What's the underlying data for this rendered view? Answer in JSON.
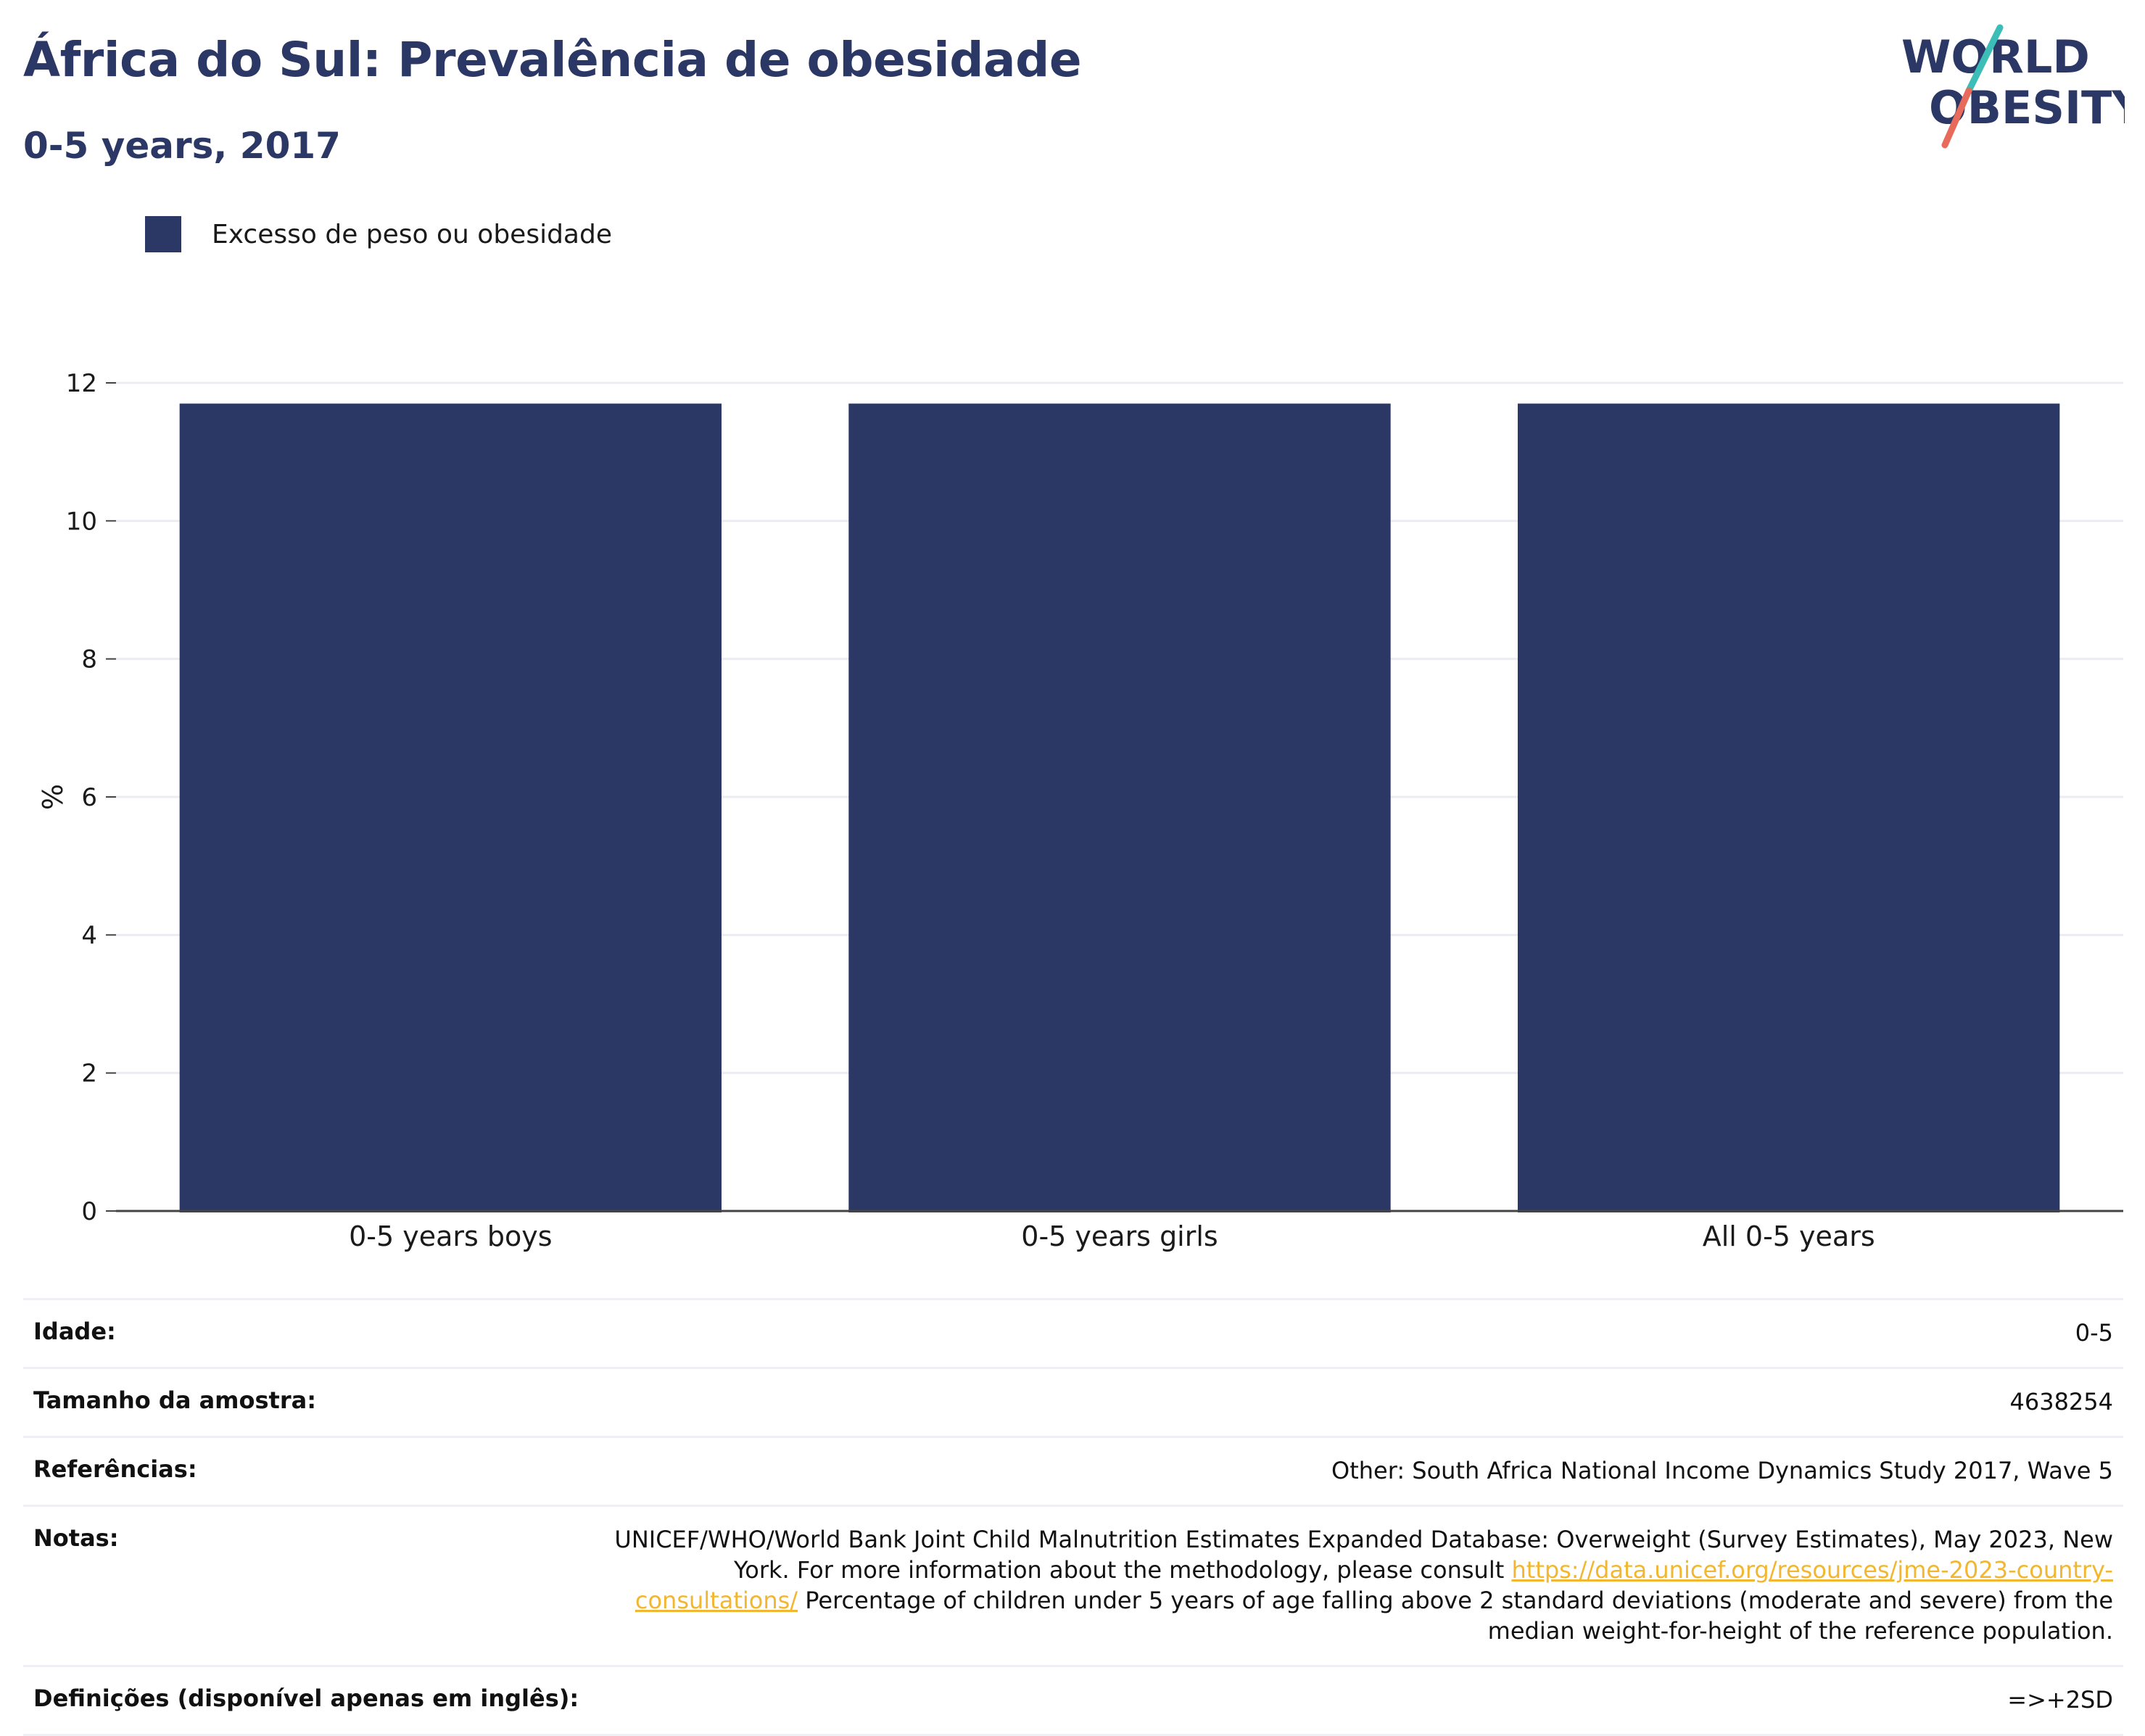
{
  "header": {
    "title": "África do Sul: Prevalência de obesidade",
    "subtitle": "0-5 years, 2017"
  },
  "logo": {
    "line1": "WORLD",
    "line2": "OBESITY"
  },
  "colors": {
    "bar": "#2b3765",
    "title": "#2b3765",
    "gridline": "#ececf2",
    "link": "#f2b630",
    "logo_teal": "#3dbdb8",
    "logo_coral": "#e86a5b"
  },
  "chart_data": {
    "type": "bar",
    "title": "África do Sul: Prevalência de obesidade",
    "subtitle": "0-5 years, 2017",
    "categories": [
      "0-5 years boys",
      "0-5 years girls",
      "All 0-5 years"
    ],
    "series": [
      {
        "name": "Excesso de peso ou obesidade",
        "values": [
          11.7,
          11.7,
          11.7
        ]
      }
    ],
    "xlabel": "",
    "ylabel": "%",
    "ylim": [
      0,
      12
    ],
    "yticks": [
      0,
      2,
      4,
      6,
      8,
      10,
      12
    ],
    "grid": true,
    "legend_position": "top-left"
  },
  "meta": {
    "age_label": "Idade:",
    "age_value": "0-5",
    "sample_label": "Tamanho da amostra:",
    "sample_value": "4638254",
    "refs_label": "Referências:",
    "refs_value": "Other: South Africa National Income Dynamics Study 2017, Wave 5",
    "notes_label": "Notas:",
    "notes_text_1": "UNICEF/WHO/World Bank Joint Child Malnutrition Estimates Expanded Database: Overweight (Survey Estimates), May 2023, New York. For more information about the methodology, please consult ",
    "notes_link": "https://data.unicef.org/resources/jme-2023-country-consultations/",
    "notes_text_2": " Percentage of children under 5 years of age falling above 2 standard deviations (moderate and severe) from the median weight-for-height of the reference population.",
    "defs_label": "Definições (disponível apenas em inglês):",
    "defs_value": "=>+2SD"
  }
}
